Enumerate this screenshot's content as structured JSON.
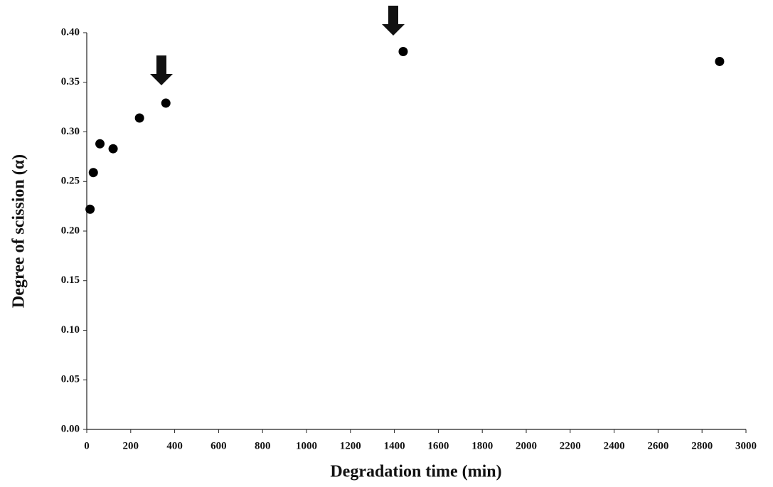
{
  "chart_data": {
    "type": "scatter",
    "x_label": "Degradation time (min)",
    "y_label": "Degree of scission (α)",
    "series": [
      {
        "color": "#000000",
        "x": [
          15,
          30,
          60,
          120,
          240,
          360,
          1440,
          2880
        ],
        "values": [
          0.222,
          0.259,
          0.288,
          0.283,
          0.314,
          0.329,
          0.381,
          0.371
        ]
      }
    ],
    "xlim": [
      0,
      3000
    ],
    "xticks": [
      0,
      200,
      400,
      600,
      800,
      1000,
      1200,
      1400,
      1600,
      1800,
      2000,
      2200,
      2400,
      2600,
      2800,
      3000
    ],
    "ylim": [
      0,
      0.4
    ],
    "yticks": [
      {
        "value": 0,
        "label": "0.00"
      },
      {
        "value": 0.05,
        "label": "0.05"
      },
      {
        "value": 0.1,
        "label": "0.10"
      },
      {
        "value": 0.15,
        "label": "0.15"
      },
      {
        "value": 0.2,
        "label": "0.20"
      },
      {
        "value": 0.25,
        "label": "0.25"
      },
      {
        "value": 0.3,
        "label": "0.30"
      },
      {
        "value": 0.35,
        "label": "0.35"
      },
      {
        "value": 0.4,
        "label": "0.40"
      }
    ],
    "grid": false
  }
}
